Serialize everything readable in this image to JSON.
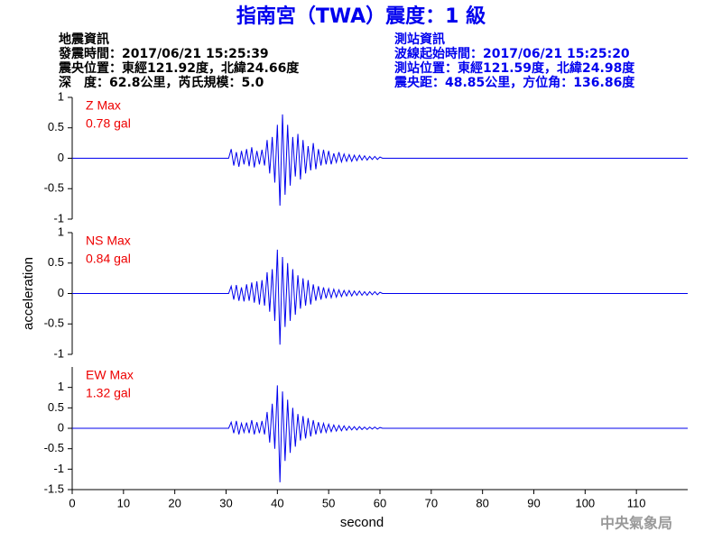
{
  "header": {
    "title": "指南宮（TWA）震度：1 級",
    "left": [
      "地震資訊",
      "發震時間：2017/06/21 15:25:39",
      "震央位置：東經121.92度，北緯24.66度",
      "深　度：62.8公里，芮氏規模：5.0"
    ],
    "right": [
      "測站資訊",
      "波線起始時間：2017/06/21 15:25:20",
      "測站位置：東經121.59度，北緯24.98度",
      "震央距：48.85公里，方位角：136.86度"
    ],
    "watermark": "中央氣象局"
  },
  "chart_data": [
    {
      "type": "line",
      "annotation": "Z Max",
      "max_label": "0.78 gal",
      "color": "#0000ee",
      "x": [
        0,
        30.5,
        31,
        31.5,
        32,
        32.5,
        33,
        33.5,
        34,
        34.5,
        35,
        35.5,
        36,
        36.5,
        37,
        37.5,
        38,
        38.5,
        39,
        39.5,
        40,
        40.5,
        41,
        41.5,
        42,
        42.5,
        43,
        43.5,
        44,
        44.5,
        45,
        45.5,
        46,
        46.5,
        47,
        47.5,
        48,
        48.5,
        49,
        49.5,
        50,
        50.5,
        51,
        51.5,
        52,
        52.5,
        53,
        53.5,
        54,
        54.5,
        55,
        55.5,
        56,
        56.5,
        57,
        57.5,
        58,
        58.5,
        59,
        59.5,
        60,
        60.5,
        120
      ],
      "values": [
        0,
        0,
        0.15,
        -0.12,
        0.1,
        -0.14,
        0.12,
        -0.1,
        0.15,
        -0.13,
        0.18,
        -0.15,
        0.12,
        -0.1,
        0.14,
        -0.12,
        0.3,
        -0.25,
        0.35,
        -0.4,
        0.55,
        -0.78,
        0.72,
        -0.6,
        0.55,
        -0.45,
        0.35,
        -0.3,
        0.4,
        -0.35,
        0.3,
        -0.25,
        0.2,
        -0.2,
        0.25,
        -0.18,
        0.15,
        -0.12,
        0.14,
        -0.1,
        0.12,
        -0.1,
        0.08,
        -0.07,
        0.1,
        -0.06,
        0.07,
        -0.05,
        0.06,
        -0.05,
        0.05,
        -0.04,
        0.05,
        -0.03,
        0.04,
        -0.03,
        0.03,
        -0.02,
        0.03,
        -0.02,
        0.02,
        0,
        0
      ],
      "xlim": [
        0,
        120
      ],
      "ylim": [
        -1,
        1
      ],
      "yticks": [
        -1,
        -0.5,
        0,
        0.5,
        1
      ]
    },
    {
      "type": "line",
      "annotation": "NS Max",
      "max_label": "0.84 gal",
      "color": "#0000ee",
      "ylabel": "acceleration",
      "x": [
        0,
        30.5,
        31,
        31.5,
        32,
        32.5,
        33,
        33.5,
        34,
        34.5,
        35,
        35.5,
        36,
        36.5,
        37,
        37.5,
        38,
        38.5,
        39,
        39.5,
        40,
        40.5,
        41,
        41.5,
        42,
        42.5,
        43,
        43.5,
        44,
        44.5,
        45,
        45.5,
        46,
        46.5,
        47,
        47.5,
        48,
        48.5,
        49,
        49.5,
        50,
        50.5,
        51,
        51.5,
        52,
        52.5,
        53,
        53.5,
        54,
        54.5,
        55,
        55.5,
        56,
        56.5,
        57,
        57.5,
        58,
        58.5,
        59,
        59.5,
        60,
        60.5,
        120
      ],
      "values": [
        0,
        0,
        0.12,
        -0.1,
        0.14,
        -0.12,
        0.1,
        -0.13,
        0.15,
        -0.12,
        0.18,
        -0.15,
        0.2,
        -0.18,
        0.22,
        -0.2,
        0.35,
        -0.3,
        0.4,
        -0.45,
        0.72,
        -0.84,
        0.6,
        -0.55,
        0.5,
        -0.45,
        0.4,
        -0.35,
        0.3,
        -0.25,
        0.25,
        -0.2,
        0.22,
        -0.18,
        0.15,
        -0.12,
        0.12,
        -0.1,
        0.1,
        -0.08,
        0.08,
        -0.07,
        0.07,
        -0.06,
        0.06,
        -0.05,
        0.05,
        -0.04,
        0.05,
        -0.04,
        0.04,
        -0.03,
        0.04,
        -0.03,
        0.03,
        -0.03,
        0.03,
        -0.02,
        0.03,
        -0.02,
        0.02,
        0,
        0
      ],
      "xlim": [
        0,
        120
      ],
      "ylim": [
        -1,
        1
      ],
      "yticks": [
        -1,
        -0.5,
        0,
        0.5,
        1
      ]
    },
    {
      "type": "line",
      "annotation": "EW Max",
      "max_label": "1.32 gal",
      "color": "#0000ee",
      "xlabel": "second",
      "x": [
        0,
        30.5,
        31,
        31.5,
        32,
        32.5,
        33,
        33.5,
        34,
        34.5,
        35,
        35.5,
        36,
        36.5,
        37,
        37.5,
        38,
        38.5,
        39,
        39.5,
        40,
        40.5,
        41,
        41.5,
        42,
        42.5,
        43,
        43.5,
        44,
        44.5,
        45,
        45.5,
        46,
        46.5,
        47,
        47.5,
        48,
        48.5,
        49,
        49.5,
        50,
        50.5,
        51,
        51.5,
        52,
        52.5,
        53,
        53.5,
        54,
        54.5,
        55,
        55.5,
        56,
        56.5,
        57,
        57.5,
        58,
        58.5,
        59,
        59.5,
        60,
        60.5,
        120
      ],
      "values": [
        0,
        0,
        0.15,
        -0.12,
        0.18,
        -0.15,
        0.12,
        -0.1,
        0.14,
        -0.12,
        0.2,
        -0.15,
        0.15,
        -0.12,
        0.18,
        -0.15,
        0.4,
        -0.35,
        0.6,
        -0.5,
        1.05,
        -1.32,
        0.9,
        -0.8,
        0.7,
        -0.6,
        0.5,
        -0.45,
        0.35,
        -0.3,
        0.3,
        -0.25,
        0.25,
        -0.2,
        0.2,
        -0.15,
        0.15,
        -0.12,
        0.12,
        -0.1,
        0.1,
        -0.08,
        0.08,
        -0.07,
        0.07,
        -0.06,
        0.06,
        -0.05,
        0.05,
        -0.04,
        0.04,
        -0.04,
        0.04,
        -0.03,
        0.03,
        -0.03,
        0.03,
        -0.02,
        0.03,
        -0.02,
        0.02,
        0,
        0
      ],
      "xlim": [
        0,
        120
      ],
      "ylim": [
        -1.5,
        1.5
      ],
      "yticks": [
        -1.5,
        -1,
        -0.5,
        0,
        0.5,
        1
      ],
      "xticks": [
        0,
        10,
        20,
        30,
        40,
        50,
        60,
        70,
        80,
        90,
        100,
        110
      ]
    }
  ]
}
